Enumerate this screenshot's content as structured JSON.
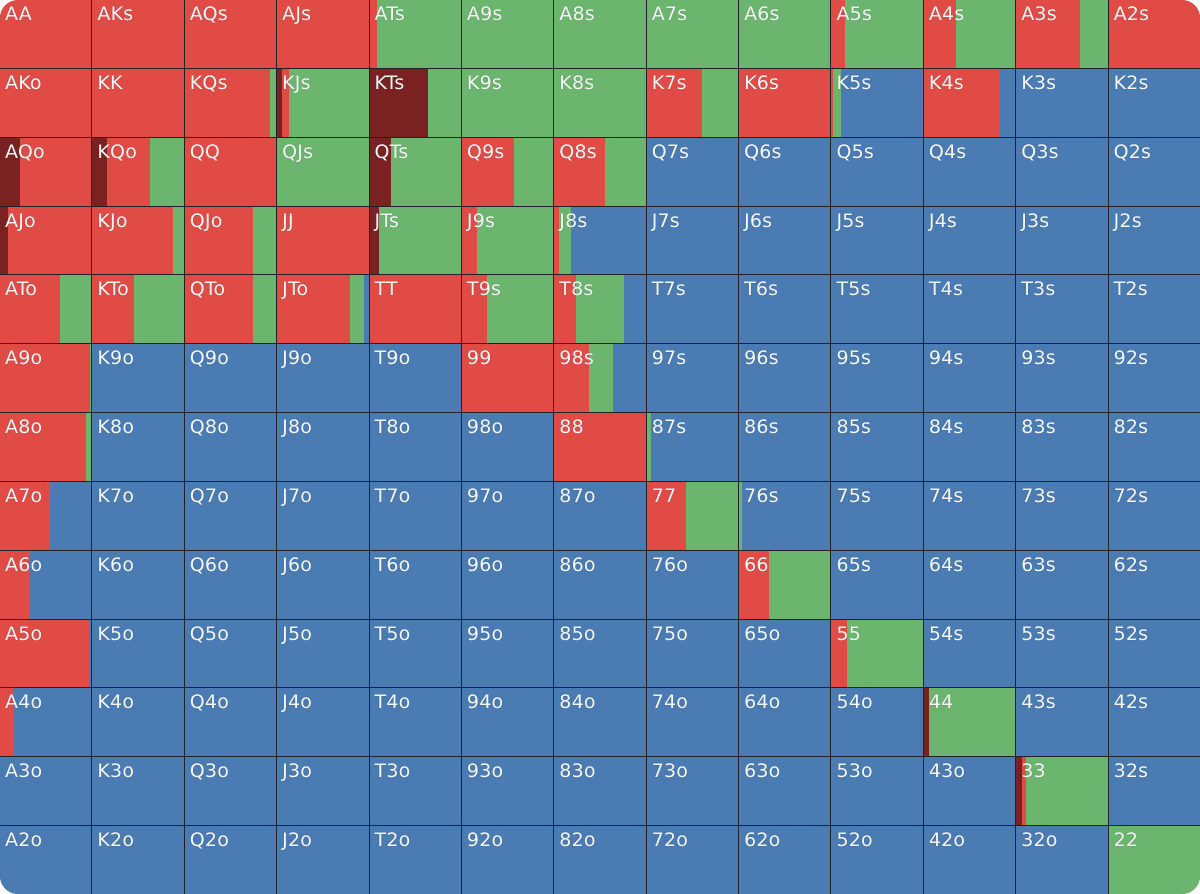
{
  "colors": {
    "allin": "#7a2222",
    "raise": "#e04b45",
    "call": "#6cb56e",
    "fold": "#4a7bb3"
  },
  "rows": [
    [
      {
        "hand": "AA",
        "mix": {
          "raise": 1.0
        }
      },
      {
        "hand": "AKs",
        "mix": {
          "raise": 1.0
        }
      },
      {
        "hand": "AQs",
        "mix": {
          "raise": 1.0
        }
      },
      {
        "hand": "AJs",
        "mix": {
          "raise": 1.0
        }
      },
      {
        "hand": "ATs",
        "mix": {
          "raise": 0.08,
          "call": 0.92
        }
      },
      {
        "hand": "A9s",
        "mix": {
          "call": 1.0
        }
      },
      {
        "hand": "A8s",
        "mix": {
          "call": 1.0
        }
      },
      {
        "hand": "A7s",
        "mix": {
          "call": 1.0
        }
      },
      {
        "hand": "A6s",
        "mix": {
          "call": 1.0
        }
      },
      {
        "hand": "A5s",
        "mix": {
          "raise": 0.15,
          "call": 0.85
        }
      },
      {
        "hand": "A4s",
        "mix": {
          "raise": 0.35,
          "call": 0.65
        }
      },
      {
        "hand": "A3s",
        "mix": {
          "raise": 0.7,
          "call": 0.3
        }
      },
      {
        "hand": "A2s",
        "mix": {
          "raise": 1.0
        }
      }
    ],
    [
      {
        "hand": "AKo",
        "mix": {
          "raise": 1.0
        }
      },
      {
        "hand": "KK",
        "mix": {
          "raise": 1.0
        }
      },
      {
        "hand": "KQs",
        "mix": {
          "raise": 0.93,
          "call": 0.07
        }
      },
      {
        "hand": "KJs",
        "mix": {
          "allin": 0.05,
          "raise": 0.08,
          "call": 0.87
        }
      },
      {
        "hand": "KTs",
        "mix": {
          "allin": 0.64,
          "call": 0.36
        }
      },
      {
        "hand": "K9s",
        "mix": {
          "call": 1.0
        }
      },
      {
        "hand": "K8s",
        "mix": {
          "call": 1.0
        }
      },
      {
        "hand": "K7s",
        "mix": {
          "raise": 0.61,
          "call": 0.39
        }
      },
      {
        "hand": "K6s",
        "mix": {
          "raise": 1.0
        }
      },
      {
        "hand": "K5s",
        "mix": {
          "raise": 0.02,
          "call": 0.09,
          "fold": 0.89
        }
      },
      {
        "hand": "K4s",
        "mix": {
          "raise": 0.83,
          "fold": 0.17
        }
      },
      {
        "hand": "K3s",
        "mix": {
          "fold": 1.0
        }
      },
      {
        "hand": "K2s",
        "mix": {
          "fold": 1.0
        }
      }
    ],
    [
      {
        "hand": "AQo",
        "mix": {
          "allin": 0.22,
          "raise": 0.78
        }
      },
      {
        "hand": "KQo",
        "mix": {
          "allin": 0.16,
          "raise": 0.47,
          "call": 0.37
        }
      },
      {
        "hand": "QQ",
        "mix": {
          "raise": 1.0
        }
      },
      {
        "hand": "QJs",
        "mix": {
          "call": 1.0
        }
      },
      {
        "hand": "QTs",
        "mix": {
          "allin": 0.24,
          "call": 0.76
        }
      },
      {
        "hand": "Q9s",
        "mix": {
          "raise": 0.57,
          "call": 0.43
        }
      },
      {
        "hand": "Q8s",
        "mix": {
          "raise": 0.55,
          "call": 0.45
        }
      },
      {
        "hand": "Q7s",
        "mix": {
          "fold": 1.0
        }
      },
      {
        "hand": "Q6s",
        "mix": {
          "fold": 1.0
        }
      },
      {
        "hand": "Q5s",
        "mix": {
          "fold": 1.0
        }
      },
      {
        "hand": "Q4s",
        "mix": {
          "fold": 1.0
        }
      },
      {
        "hand": "Q3s",
        "mix": {
          "fold": 1.0
        }
      },
      {
        "hand": "Q2s",
        "mix": {
          "fold": 1.0
        }
      }
    ],
    [
      {
        "hand": "AJo",
        "mix": {
          "allin": 0.09,
          "raise": 0.91
        }
      },
      {
        "hand": "KJo",
        "mix": {
          "raise": 0.88,
          "call": 0.12
        }
      },
      {
        "hand": "QJo",
        "mix": {
          "raise": 0.75,
          "call": 0.25
        }
      },
      {
        "hand": "JJ",
        "mix": {
          "raise": 1.0
        }
      },
      {
        "hand": "JTs",
        "mix": {
          "allin": 0.1,
          "call": 0.9
        }
      },
      {
        "hand": "J9s",
        "mix": {
          "raise": 0.16,
          "call": 0.84
        }
      },
      {
        "hand": "J8s",
        "mix": {
          "raise": 0.05,
          "call": 0.13,
          "fold": 0.82
        }
      },
      {
        "hand": "J7s",
        "mix": {
          "fold": 1.0
        }
      },
      {
        "hand": "J6s",
        "mix": {
          "fold": 1.0
        }
      },
      {
        "hand": "J5s",
        "mix": {
          "fold": 1.0
        }
      },
      {
        "hand": "J4s",
        "mix": {
          "fold": 1.0
        }
      },
      {
        "hand": "J3s",
        "mix": {
          "fold": 1.0
        }
      },
      {
        "hand": "J2s",
        "mix": {
          "fold": 1.0
        }
      }
    ],
    [
      {
        "hand": "ATo",
        "mix": {
          "raise": 0.66,
          "call": 0.34
        }
      },
      {
        "hand": "KTo",
        "mix": {
          "raise": 0.46,
          "call": 0.54
        }
      },
      {
        "hand": "QTo",
        "mix": {
          "raise": 0.75,
          "call": 0.25
        }
      },
      {
        "hand": "JTo",
        "mix": {
          "raise": 0.8,
          "call": 0.15,
          "fold": 0.05
        }
      },
      {
        "hand": "TT",
        "mix": {
          "raise": 1.0
        }
      },
      {
        "hand": "T9s",
        "mix": {
          "raise": 0.27,
          "call": 0.73
        }
      },
      {
        "hand": "T8s",
        "mix": {
          "raise": 0.24,
          "call": 0.52,
          "fold": 0.24
        }
      },
      {
        "hand": "T7s",
        "mix": {
          "fold": 1.0
        }
      },
      {
        "hand": "T6s",
        "mix": {
          "fold": 1.0
        }
      },
      {
        "hand": "T5s",
        "mix": {
          "fold": 1.0
        }
      },
      {
        "hand": "T4s",
        "mix": {
          "fold": 1.0
        }
      },
      {
        "hand": "T3s",
        "mix": {
          "fold": 1.0
        }
      },
      {
        "hand": "T2s",
        "mix": {
          "fold": 1.0
        }
      }
    ],
    [
      {
        "hand": "A9o",
        "mix": {
          "raise": 0.98,
          "call": 0.02
        }
      },
      {
        "hand": "K9o",
        "mix": {
          "fold": 1.0
        }
      },
      {
        "hand": "Q9o",
        "mix": {
          "fold": 1.0
        }
      },
      {
        "hand": "J9o",
        "mix": {
          "fold": 1.0
        }
      },
      {
        "hand": "T9o",
        "mix": {
          "fold": 1.0
        }
      },
      {
        "hand": "99",
        "mix": {
          "raise": 1.0
        }
      },
      {
        "hand": "98s",
        "mix": {
          "raise": 0.38,
          "call": 0.26,
          "fold": 0.36
        }
      },
      {
        "hand": "97s",
        "mix": {
          "fold": 1.0
        }
      },
      {
        "hand": "96s",
        "mix": {
          "fold": 1.0
        }
      },
      {
        "hand": "95s",
        "mix": {
          "fold": 1.0
        }
      },
      {
        "hand": "94s",
        "mix": {
          "fold": 1.0
        }
      },
      {
        "hand": "93s",
        "mix": {
          "fold": 1.0
        }
      },
      {
        "hand": "92s",
        "mix": {
          "fold": 1.0
        }
      }
    ],
    [
      {
        "hand": "A8o",
        "mix": {
          "raise": 0.94,
          "call": 0.06
        }
      },
      {
        "hand": "K8o",
        "mix": {
          "fold": 1.0
        }
      },
      {
        "hand": "Q8o",
        "mix": {
          "fold": 1.0
        }
      },
      {
        "hand": "J8o",
        "mix": {
          "fold": 1.0
        }
      },
      {
        "hand": "T8o",
        "mix": {
          "fold": 1.0
        }
      },
      {
        "hand": "98o",
        "mix": {
          "fold": 1.0
        }
      },
      {
        "hand": "88",
        "mix": {
          "raise": 1.0
        }
      },
      {
        "hand": "87s",
        "mix": {
          "call": 0.05,
          "fold": 0.95
        }
      },
      {
        "hand": "86s",
        "mix": {
          "fold": 1.0
        }
      },
      {
        "hand": "85s",
        "mix": {
          "fold": 1.0
        }
      },
      {
        "hand": "84s",
        "mix": {
          "fold": 1.0
        }
      },
      {
        "hand": "83s",
        "mix": {
          "fold": 1.0
        }
      },
      {
        "hand": "82s",
        "mix": {
          "fold": 1.0
        }
      }
    ],
    [
      {
        "hand": "A7o",
        "mix": {
          "raise": 0.55,
          "fold": 0.45
        }
      },
      {
        "hand": "K7o",
        "mix": {
          "fold": 1.0
        }
      },
      {
        "hand": "Q7o",
        "mix": {
          "fold": 1.0
        }
      },
      {
        "hand": "J7o",
        "mix": {
          "fold": 1.0
        }
      },
      {
        "hand": "T7o",
        "mix": {
          "fold": 1.0
        }
      },
      {
        "hand": "97o",
        "mix": {
          "fold": 1.0
        }
      },
      {
        "hand": "87o",
        "mix": {
          "fold": 1.0
        }
      },
      {
        "hand": "77",
        "mix": {
          "raise": 0.43,
          "call": 0.57
        }
      },
      {
        "hand": "76s",
        "mix": {
          "call": 0.03,
          "fold": 0.97
        }
      },
      {
        "hand": "75s",
        "mix": {
          "fold": 1.0
        }
      },
      {
        "hand": "74s",
        "mix": {
          "fold": 1.0
        }
      },
      {
        "hand": "73s",
        "mix": {
          "fold": 1.0
        }
      },
      {
        "hand": "72s",
        "mix": {
          "fold": 1.0
        }
      }
    ],
    [
      {
        "hand": "A6o",
        "mix": {
          "raise": 0.33,
          "fold": 0.67
        }
      },
      {
        "hand": "K6o",
        "mix": {
          "fold": 1.0
        }
      },
      {
        "hand": "Q6o",
        "mix": {
          "fold": 1.0
        }
      },
      {
        "hand": "J6o",
        "mix": {
          "fold": 1.0
        }
      },
      {
        "hand": "T6o",
        "mix": {
          "fold": 1.0
        }
      },
      {
        "hand": "96o",
        "mix": {
          "fold": 1.0
        }
      },
      {
        "hand": "86o",
        "mix": {
          "fold": 1.0
        }
      },
      {
        "hand": "76o",
        "mix": {
          "fold": 1.0
        }
      },
      {
        "hand": "66",
        "mix": {
          "raise": 0.33,
          "call": 0.67
        }
      },
      {
        "hand": "65s",
        "mix": {
          "fold": 1.0
        }
      },
      {
        "hand": "64s",
        "mix": {
          "fold": 1.0
        }
      },
      {
        "hand": "63s",
        "mix": {
          "fold": 1.0
        }
      },
      {
        "hand": "62s",
        "mix": {
          "fold": 1.0
        }
      }
    ],
    [
      {
        "hand": "A5o",
        "mix": {
          "raise": 0.97,
          "fold": 0.03
        }
      },
      {
        "hand": "K5o",
        "mix": {
          "fold": 1.0
        }
      },
      {
        "hand": "Q5o",
        "mix": {
          "fold": 1.0
        }
      },
      {
        "hand": "J5o",
        "mix": {
          "fold": 1.0
        }
      },
      {
        "hand": "T5o",
        "mix": {
          "fold": 1.0
        }
      },
      {
        "hand": "95o",
        "mix": {
          "fold": 1.0
        }
      },
      {
        "hand": "85o",
        "mix": {
          "fold": 1.0
        }
      },
      {
        "hand": "75o",
        "mix": {
          "fold": 1.0
        }
      },
      {
        "hand": "65o",
        "mix": {
          "fold": 1.0
        }
      },
      {
        "hand": "55",
        "mix": {
          "raise": 0.17,
          "call": 0.83
        }
      },
      {
        "hand": "54s",
        "mix": {
          "fold": 1.0
        }
      },
      {
        "hand": "53s",
        "mix": {
          "fold": 1.0
        }
      },
      {
        "hand": "52s",
        "mix": {
          "fold": 1.0
        }
      }
    ],
    [
      {
        "hand": "A4o",
        "mix": {
          "raise": 0.15,
          "fold": 0.85
        }
      },
      {
        "hand": "K4o",
        "mix": {
          "fold": 1.0
        }
      },
      {
        "hand": "Q4o",
        "mix": {
          "fold": 1.0
        }
      },
      {
        "hand": "J4o",
        "mix": {
          "fold": 1.0
        }
      },
      {
        "hand": "T4o",
        "mix": {
          "fold": 1.0
        }
      },
      {
        "hand": "94o",
        "mix": {
          "fold": 1.0
        }
      },
      {
        "hand": "84o",
        "mix": {
          "fold": 1.0
        }
      },
      {
        "hand": "74o",
        "mix": {
          "fold": 1.0
        }
      },
      {
        "hand": "64o",
        "mix": {
          "fold": 1.0
        }
      },
      {
        "hand": "54o",
        "mix": {
          "fold": 1.0
        }
      },
      {
        "hand": "44",
        "mix": {
          "allin": 0.06,
          "call": 0.94
        }
      },
      {
        "hand": "43s",
        "mix": {
          "fold": 1.0
        }
      },
      {
        "hand": "42s",
        "mix": {
          "fold": 1.0
        }
      }
    ],
    [
      {
        "hand": "A3o",
        "mix": {
          "fold": 1.0
        }
      },
      {
        "hand": "K3o",
        "mix": {
          "fold": 1.0
        }
      },
      {
        "hand": "Q3o",
        "mix": {
          "fold": 1.0
        }
      },
      {
        "hand": "J3o",
        "mix": {
          "fold": 1.0
        }
      },
      {
        "hand": "T3o",
        "mix": {
          "fold": 1.0
        }
      },
      {
        "hand": "93o",
        "mix": {
          "fold": 1.0
        }
      },
      {
        "hand": "83o",
        "mix": {
          "fold": 1.0
        }
      },
      {
        "hand": "73o",
        "mix": {
          "fold": 1.0
        }
      },
      {
        "hand": "63o",
        "mix": {
          "fold": 1.0
        }
      },
      {
        "hand": "53o",
        "mix": {
          "fold": 1.0
        }
      },
      {
        "hand": "43o",
        "mix": {
          "fold": 1.0
        }
      },
      {
        "hand": "33",
        "mix": {
          "raise": 0.05,
          "allin": 0.06,
          "call": 0.89
        }
      },
      {
        "hand": "32s",
        "mix": {
          "fold": 1.0
        }
      }
    ],
    [
      {
        "hand": "A2o",
        "mix": {
          "fold": 1.0
        }
      },
      {
        "hand": "K2o",
        "mix": {
          "fold": 1.0
        }
      },
      {
        "hand": "Q2o",
        "mix": {
          "fold": 1.0
        }
      },
      {
        "hand": "J2o",
        "mix": {
          "fold": 1.0
        }
      },
      {
        "hand": "T2o",
        "mix": {
          "fold": 1.0
        }
      },
      {
        "hand": "92o",
        "mix": {
          "fold": 1.0
        }
      },
      {
        "hand": "82o",
        "mix": {
          "fold": 1.0
        }
      },
      {
        "hand": "72o",
        "mix": {
          "fold": 1.0
        }
      },
      {
        "hand": "62o",
        "mix": {
          "fold": 1.0
        }
      },
      {
        "hand": "52o",
        "mix": {
          "fold": 1.0
        }
      },
      {
        "hand": "42o",
        "mix": {
          "fold": 1.0
        }
      },
      {
        "hand": "32o",
        "mix": {
          "fold": 1.0
        }
      },
      {
        "hand": "22",
        "mix": {
          "call": 1.0
        }
      }
    ]
  ]
}
